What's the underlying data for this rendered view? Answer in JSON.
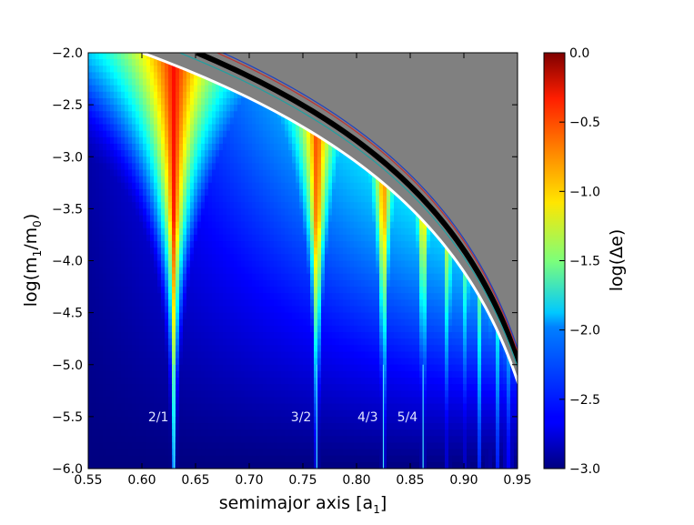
{
  "chart_data": {
    "type": "heatmap",
    "xlabel": {
      "main": "semimajor axis  [a",
      "sub": "1",
      "tail": "]"
    },
    "ylabel": {
      "main": "log(m",
      "sub1": "1",
      "mid": "/m",
      "sub2": "0",
      "tail": ")"
    },
    "xlim": [
      0.55,
      0.95
    ],
    "ylim": [
      -6.0,
      -2.0
    ],
    "xticks": [
      "0.55",
      "0.60",
      "0.65",
      "0.70",
      "0.75",
      "0.80",
      "0.85",
      "0.90",
      "0.95"
    ],
    "yticks": [
      "−6.0",
      "−5.5",
      "−5.0",
      "−4.5",
      "−4.0",
      "−3.5",
      "−3.0",
      "−2.5",
      "−2.0"
    ],
    "colorbar": {
      "label": "log(Δe)",
      "range": [
        -3.0,
        0.0
      ],
      "ticks": [
        "0.0",
        "−0.5",
        "−1.0",
        "−1.5",
        "−2.0",
        "−2.5",
        "−3.0"
      ],
      "colormap": "jet"
    },
    "resonances": [
      {
        "label": "2/1",
        "a": 0.63
      },
      {
        "label": "3/2",
        "a": 0.763
      },
      {
        "label": "4/3",
        "a": 0.825
      },
      {
        "label": "5/4",
        "a": 0.862
      }
    ],
    "overlap_curves": [
      {
        "color": "#000000",
        "coeff": 1.3
      },
      {
        "color": "#ffffff",
        "coeff": 1.49
      },
      {
        "color": "#20a0a0",
        "coeff": 1.36
      },
      {
        "color": "#c03030",
        "coeff": 1.23
      },
      {
        "color": "#2040c0",
        "coeff": 1.21
      }
    ],
    "unstable_region_color": "#808080"
  }
}
